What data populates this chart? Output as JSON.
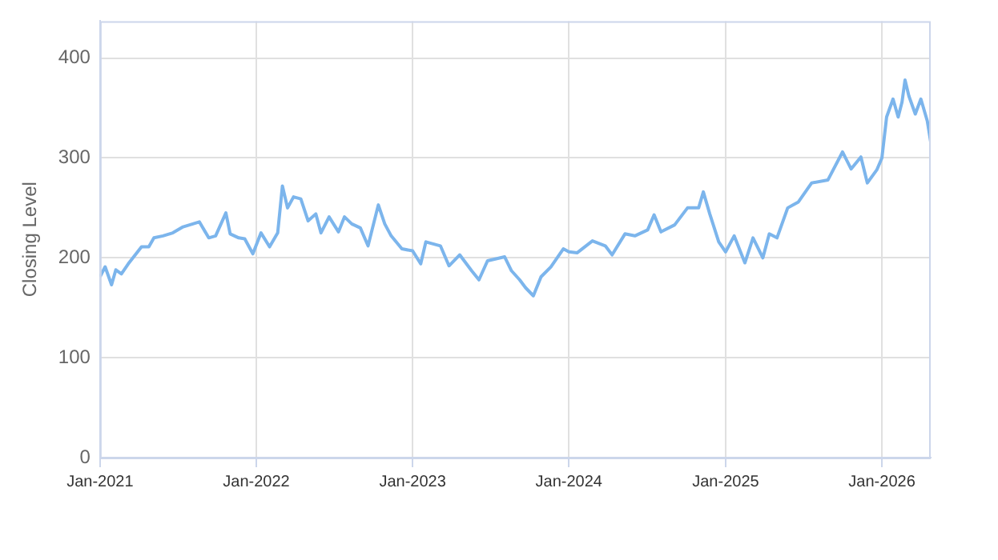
{
  "chart_data": {
    "type": "line",
    "ylabel": "Closing Level",
    "grid": true,
    "legend": false,
    "marker": "none",
    "line_style": "solid",
    "xlim": [
      "2021-01-01",
      "2026-04-25"
    ],
    "xticks": [
      {
        "value": "2021-01-01",
        "label": "Jan-2021"
      },
      {
        "value": "2022-01-01",
        "label": "Jan-2022"
      },
      {
        "value": "2023-01-01",
        "label": "Jan-2023"
      },
      {
        "value": "2024-01-01",
        "label": "Jan-2024"
      },
      {
        "value": "2025-01-01",
        "label": "Jan-2025"
      },
      {
        "value": "2026-01-01",
        "label": "Jan-2026"
      }
    ],
    "ylim": [
      0,
      437
    ],
    "yticks": [
      0,
      100,
      200,
      300,
      400
    ],
    "x": [
      "2021-01-01",
      "2021-01-13",
      "2021-01-28",
      "2021-02-07",
      "2021-02-20",
      "2021-03-08",
      "2021-04-08",
      "2021-04-25",
      "2021-05-07",
      "2021-05-28",
      "2021-06-20",
      "2021-07-14",
      "2021-08-21",
      "2021-09-12",
      "2021-09-28",
      "2021-10-22",
      "2021-11-01",
      "2021-11-21",
      "2021-12-05",
      "2021-12-24",
      "2022-01-12",
      "2022-02-01",
      "2022-02-20",
      "2022-03-03",
      "2022-03-15",
      "2022-03-29",
      "2022-04-15",
      "2022-05-02",
      "2022-05-20",
      "2022-06-01",
      "2022-06-20",
      "2022-07-12",
      "2022-07-26",
      "2022-08-12",
      "2022-09-01",
      "2022-09-19",
      "2022-10-13",
      "2022-10-28",
      "2022-11-12",
      "2022-12-07",
      "2023-01-01",
      "2023-01-20",
      "2023-02-01",
      "2023-03-07",
      "2023-03-27",
      "2023-04-21",
      "2023-05-19",
      "2023-06-05",
      "2023-06-25",
      "2023-08-04",
      "2023-08-20",
      "2023-09-08",
      "2023-09-22",
      "2023-10-10",
      "2023-10-28",
      "2023-11-20",
      "2023-12-19",
      "2024-01-01",
      "2024-01-20",
      "2024-02-25",
      "2024-03-26",
      "2024-04-11",
      "2024-05-11",
      "2024-06-03",
      "2024-07-03",
      "2024-07-18",
      "2024-08-03",
      "2024-09-04",
      "2024-10-04",
      "2024-10-30",
      "2024-11-10",
      "2024-11-25",
      "2024-12-16",
      "2025-01-01",
      "2025-01-21",
      "2025-02-15",
      "2025-03-06",
      "2025-03-29",
      "2025-04-13",
      "2025-05-01",
      "2025-05-26",
      "2025-06-20",
      "2025-07-21",
      "2025-08-28",
      "2025-10-01",
      "2025-10-21",
      "2025-11-13",
      "2025-11-28",
      "2025-12-20",
      "2026-01-01",
      "2026-01-12",
      "2026-01-27",
      "2026-02-08",
      "2026-02-17",
      "2026-02-24",
      "2026-03-05",
      "2026-03-20",
      "2026-04-02",
      "2026-04-17",
      "2026-04-25"
    ],
    "series": [
      {
        "color": "#7cb5ec",
        "values": [
          181,
          191,
          173,
          188,
          184,
          194,
          211,
          211,
          220,
          222,
          225,
          231,
          236,
          220,
          222,
          245,
          224,
          220,
          219,
          204,
          225,
          211,
          225,
          272,
          250,
          261,
          259,
          237,
          244,
          225,
          241,
          226,
          241,
          234,
          230,
          212,
          253,
          234,
          222,
          209,
          207,
          194,
          216,
          212,
          192,
          203,
          187,
          178,
          197,
          201,
          187,
          178,
          170,
          162,
          181,
          191,
          209,
          206,
          205,
          217,
          212,
          203,
          224,
          222,
          228,
          243,
          226,
          233,
          250,
          250,
          266,
          244,
          216,
          206,
          222,
          195,
          220,
          200,
          224,
          220,
          250,
          256,
          275,
          278,
          306,
          289,
          301,
          275,
          288,
          300,
          341,
          359,
          341,
          356,
          378,
          362,
          344,
          359,
          337,
          316
        ]
      }
    ]
  }
}
